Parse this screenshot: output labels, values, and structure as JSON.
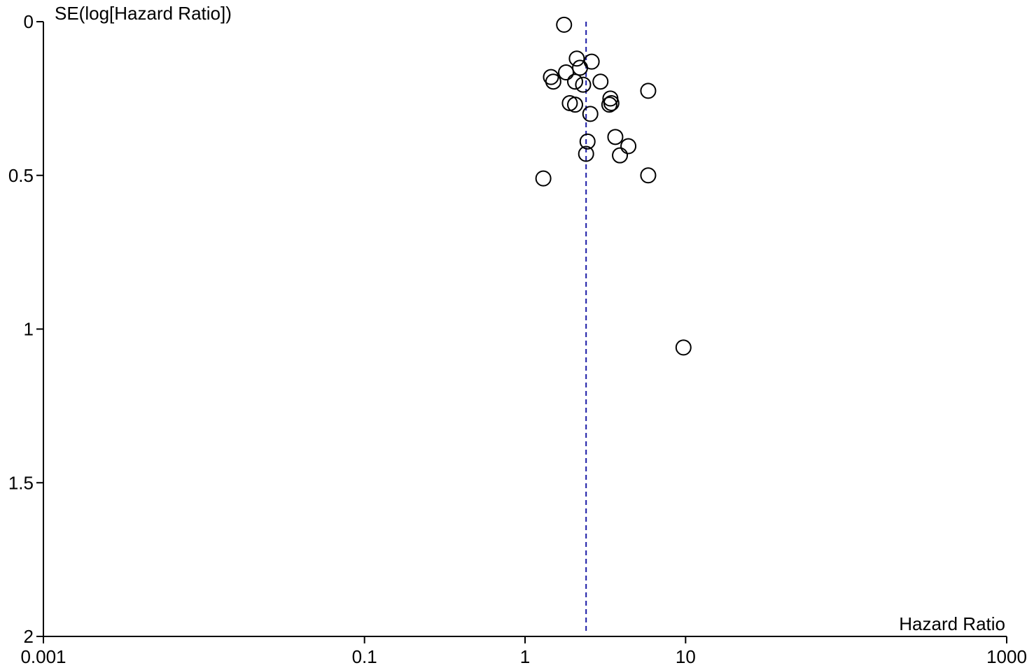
{
  "chart_data": {
    "type": "scatter",
    "title": "",
    "xlabel": "Hazard Ratio",
    "ylabel": "SE(log[Hazard Ratio])",
    "x_scale": "log",
    "xlim": [
      0.001,
      1000
    ],
    "ylim": [
      0,
      2
    ],
    "y_inverted": true,
    "x_ticks": [
      {
        "value": 0.001,
        "label": "0.001"
      },
      {
        "value": 0.1,
        "label": "0.1"
      },
      {
        "value": 1,
        "label": "1"
      },
      {
        "value": 10,
        "label": "10"
      },
      {
        "value": 1000,
        "label": "1000"
      }
    ],
    "y_ticks": [
      {
        "value": 0,
        "label": "0"
      },
      {
        "value": 0.5,
        "label": "0.5"
      },
      {
        "value": 1,
        "label": "1"
      },
      {
        "value": 1.5,
        "label": "1.5"
      },
      {
        "value": 2,
        "label": "2"
      }
    ],
    "reference_line": {
      "x": 2.4,
      "style": "dashed",
      "color": "#1a1aa6"
    },
    "marker": {
      "shape": "open-circle",
      "color": "#000000"
    },
    "grid": false,
    "points": [
      {
        "x": 1.75,
        "y": 0.01
      },
      {
        "x": 2.1,
        "y": 0.12
      },
      {
        "x": 2.6,
        "y": 0.13
      },
      {
        "x": 2.2,
        "y": 0.15
      },
      {
        "x": 1.8,
        "y": 0.165
      },
      {
        "x": 1.45,
        "y": 0.18
      },
      {
        "x": 1.5,
        "y": 0.195
      },
      {
        "x": 2.05,
        "y": 0.195
      },
      {
        "x": 2.3,
        "y": 0.205
      },
      {
        "x": 2.95,
        "y": 0.195
      },
      {
        "x": 5.85,
        "y": 0.225
      },
      {
        "x": 3.4,
        "y": 0.25
      },
      {
        "x": 3.45,
        "y": 0.265
      },
      {
        "x": 3.35,
        "y": 0.27
      },
      {
        "x": 1.9,
        "y": 0.265
      },
      {
        "x": 2.05,
        "y": 0.27
      },
      {
        "x": 2.55,
        "y": 0.3
      },
      {
        "x": 3.65,
        "y": 0.375
      },
      {
        "x": 2.45,
        "y": 0.39
      },
      {
        "x": 4.4,
        "y": 0.405
      },
      {
        "x": 2.4,
        "y": 0.43
      },
      {
        "x": 3.9,
        "y": 0.435
      },
      {
        "x": 1.3,
        "y": 0.51
      },
      {
        "x": 5.85,
        "y": 0.5
      },
      {
        "x": 9.7,
        "y": 1.06
      }
    ]
  }
}
